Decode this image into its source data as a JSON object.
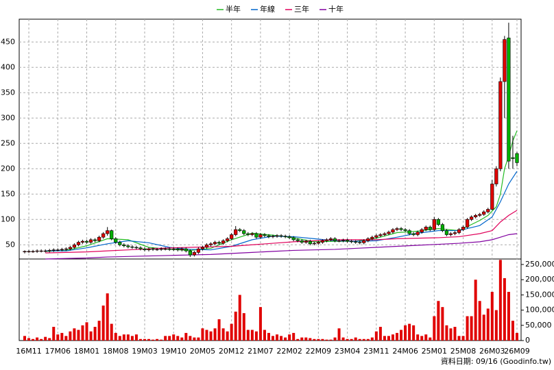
{
  "chart_data": {
    "type": "candlestick",
    "source": "資料日期: 09/16 (Goodinfo.tw)",
    "categories": [
      null,
      "16M11",
      null,
      null,
      null,
      null,
      null,
      null,
      "17M06",
      null,
      null,
      null,
      null,
      null,
      null,
      "18M01",
      null,
      null,
      null,
      null,
      null,
      null,
      "18M08",
      null,
      null,
      null,
      null,
      null,
      null,
      "19M03",
      null,
      null,
      null,
      null,
      null,
      null,
      "19M10",
      null,
      null,
      null,
      null,
      null,
      null,
      "20M05",
      null,
      null,
      null,
      null,
      null,
      null,
      "20M12",
      null,
      null,
      null,
      null,
      null,
      null,
      "21M07",
      null,
      null,
      null,
      null,
      null,
      null,
      "22M02",
      null,
      null,
      null,
      null,
      null,
      null,
      "22M09",
      null,
      null,
      null,
      null,
      null,
      null,
      "23M04",
      null,
      null,
      null,
      null,
      null,
      null,
      "23M11",
      null,
      null,
      null,
      null,
      null,
      null,
      "24M06",
      null,
      null,
      null,
      null,
      null,
      null,
      "25M01",
      null,
      null,
      null,
      null,
      null,
      null,
      "25M08",
      null,
      null,
      null,
      null,
      null,
      null,
      "26M03",
      null,
      null,
      null,
      null,
      null,
      "26M09"
    ],
    "open": [
      36,
      37,
      37,
      37,
      38,
      38,
      38,
      39,
      40,
      40,
      41,
      42,
      45,
      50,
      55,
      57,
      55,
      60,
      58,
      65,
      72,
      78,
      62,
      55,
      50,
      48,
      46,
      45,
      44,
      42,
      40,
      42,
      41,
      41,
      42,
      42,
      41,
      42,
      40,
      42,
      38,
      30,
      35,
      42,
      45,
      50,
      52,
      55,
      53,
      58,
      62,
      70,
      80,
      78,
      72,
      70,
      72,
      65,
      70,
      68,
      66,
      67,
      68,
      67,
      66,
      64,
      60,
      58,
      55,
      57,
      52,
      53,
      55,
      58,
      60,
      62,
      58,
      58,
      59,
      57,
      56,
      55,
      54,
      58,
      62,
      65,
      68,
      70,
      72,
      75,
      80,
      82,
      80,
      78,
      72,
      70,
      75,
      80,
      85,
      80,
      100,
      90,
      78,
      70,
      72,
      74,
      80,
      85,
      100,
      105,
      108,
      110,
      115,
      120,
      170,
      200,
      372,
      458,
      222,
      230
    ],
    "high": [
      39,
      40,
      40,
      41,
      41,
      41,
      42,
      43,
      43,
      44,
      45,
      48,
      53,
      58,
      60,
      60,
      63,
      63,
      68,
      75,
      85,
      80,
      65,
      58,
      53,
      51,
      49,
      48,
      47,
      45,
      45,
      45,
      44,
      45,
      45,
      45,
      45,
      45,
      45,
      45,
      41,
      38,
      45,
      48,
      53,
      55,
      58,
      58,
      61,
      65,
      73,
      87,
      83,
      81,
      75,
      75,
      75,
      73,
      73,
      71,
      70,
      71,
      71,
      70,
      69,
      67,
      63,
      61,
      60,
      60,
      56,
      58,
      61,
      63,
      65,
      65,
      61,
      62,
      62,
      60,
      59,
      58,
      61,
      65,
      68,
      71,
      73,
      75,
      78,
      83,
      85,
      85,
      83,
      81,
      75,
      78,
      83,
      88,
      88,
      105,
      103,
      93,
      81,
      75,
      77,
      83,
      88,
      103,
      108,
      111,
      113,
      118,
      123,
      178,
      205,
      380,
      462,
      488,
      265,
      233
    ],
    "low": [
      33,
      34,
      34,
      34,
      35,
      35,
      35,
      36,
      37,
      37,
      38,
      39,
      42,
      47,
      52,
      52,
      52,
      55,
      55,
      62,
      68,
      59,
      52,
      47,
      45,
      43,
      42,
      41,
      39,
      37,
      37,
      38,
      38,
      38,
      39,
      38,
      38,
      37,
      37,
      35,
      26,
      27,
      32,
      39,
      42,
      47,
      49,
      50,
      50,
      55,
      59,
      67,
      75,
      69,
      67,
      67,
      62,
      62,
      65,
      63,
      63,
      64,
      64,
      63,
      61,
      57,
      55,
      52,
      52,
      49,
      49,
      50,
      52,
      55,
      57,
      55,
      55,
      55,
      54,
      53,
      52,
      51,
      51,
      55,
      59,
      62,
      65,
      67,
      69,
      72,
      77,
      77,
      75,
      69,
      67,
      67,
      72,
      77,
      77,
      77,
      87,
      75,
      67,
      67,
      69,
      71,
      77,
      82,
      97,
      102,
      105,
      107,
      112,
      118,
      165,
      195,
      300,
      200,
      200,
      205
    ],
    "close": [
      37,
      37,
      37,
      38,
      38,
      38,
      39,
      40,
      40,
      41,
      42,
      45,
      50,
      55,
      57,
      55,
      60,
      58,
      65,
      72,
      78,
      62,
      55,
      50,
      48,
      46,
      45,
      44,
      42,
      40,
      42,
      41,
      41,
      42,
      42,
      41,
      42,
      40,
      42,
      38,
      30,
      35,
      42,
      45,
      50,
      52,
      55,
      53,
      58,
      62,
      70,
      80,
      78,
      72,
      70,
      72,
      65,
      70,
      68,
      66,
      67,
      68,
      67,
      66,
      64,
      60,
      58,
      55,
      57,
      52,
      53,
      55,
      58,
      60,
      62,
      58,
      58,
      59,
      57,
      56,
      55,
      54,
      58,
      62,
      65,
      68,
      70,
      72,
      75,
      80,
      82,
      80,
      78,
      72,
      70,
      75,
      80,
      85,
      80,
      100,
      90,
      78,
      70,
      72,
      74,
      80,
      85,
      100,
      105,
      108,
      110,
      115,
      120,
      170,
      200,
      372,
      455,
      215,
      220,
      212
    ],
    "up_color": "#e00000",
    "down_color": "#00b000",
    "ylim": [
      22,
      495
    ],
    "yticks": [
      50,
      100,
      150,
      200,
      250,
      300,
      350,
      400,
      450
    ],
    "grid": true,
    "series": [
      {
        "name": "半年",
        "color": "#22bb22",
        "x": [
          5,
          10,
          15,
          20,
          25,
          30,
          35,
          40,
          45,
          50,
          55,
          60,
          65,
          70,
          75,
          80,
          85,
          90,
          95,
          100,
          105,
          110,
          112,
          114,
          115,
          116,
          117,
          118,
          119
        ],
        "values": [
          37,
          39,
          48,
          62,
          60,
          45,
          41,
          39,
          43,
          60,
          73,
          69,
          64,
          56,
          57,
          57,
          63,
          74,
          77,
          82,
          78,
          98,
          108,
          125,
          150,
          200,
          225,
          255,
          275
        ]
      },
      {
        "name": "年線",
        "color": "#0066cc",
        "x": [
          5,
          10,
          15,
          20,
          25,
          30,
          35,
          40,
          45,
          50,
          55,
          60,
          65,
          70,
          75,
          80,
          85,
          90,
          95,
          100,
          105,
          110,
          113,
          115,
          117,
          119
        ],
        "values": [
          38,
          38,
          44,
          52,
          58,
          54,
          45,
          41,
          40,
          47,
          60,
          67,
          66,
          62,
          58,
          57,
          58,
          65,
          73,
          78,
          78,
          88,
          105,
          135,
          170,
          195
        ]
      },
      {
        "name": "三年",
        "color": "#e0005a",
        "x": [
          5,
          10,
          15,
          20,
          25,
          30,
          35,
          40,
          45,
          50,
          55,
          60,
          65,
          70,
          75,
          80,
          85,
          90,
          95,
          100,
          105,
          110,
          113,
          115,
          117,
          119
        ],
        "values": [
          34,
          35,
          36,
          38,
          40,
          42,
          44,
          45,
          46,
          47,
          50,
          53,
          56,
          58,
          60,
          60,
          60,
          62,
          63,
          64,
          66,
          72,
          78,
          95,
          108,
          118
        ]
      },
      {
        "name": "十年",
        "color": "#8000a0",
        "x": [
          5,
          10,
          15,
          20,
          25,
          30,
          35,
          40,
          45,
          50,
          55,
          60,
          65,
          70,
          75,
          80,
          85,
          90,
          95,
          100,
          105,
          110,
          113,
          115,
          117,
          119
        ],
        "values": [
          22,
          23,
          24,
          26,
          27,
          28,
          29,
          30,
          31,
          33,
          35,
          37,
          39,
          40,
          41,
          43,
          45,
          47,
          49,
          51,
          53,
          56,
          60,
          65,
          70,
          72
        ]
      }
    ],
    "volume": {
      "color": "#e00000",
      "ylim": [
        0,
        268000
      ],
      "yticks": [
        0,
        {
          "value": 50000,
          "label": "50,000"
        },
        {
          "value": 100000,
          "label": "100,000"
        },
        {
          "value": 150000,
          "label": "150,000"
        },
        {
          "value": 200000,
          "label": "200,000"
        },
        {
          "value": 250000,
          "label": "250,000"
        }
      ],
      "values": [
        15000,
        8000,
        5000,
        10000,
        5000,
        12000,
        8000,
        45000,
        20000,
        25000,
        15000,
        30000,
        40000,
        35000,
        50000,
        60000,
        30000,
        45000,
        65000,
        115000,
        155000,
        55000,
        25000,
        15000,
        20000,
        20000,
        15000,
        20000,
        5000,
        5000,
        5000,
        3000,
        5000,
        3000,
        15000,
        15000,
        20000,
        15000,
        10000,
        25000,
        15000,
        10000,
        10000,
        40000,
        35000,
        30000,
        40000,
        70000,
        40000,
        30000,
        55000,
        95000,
        150000,
        90000,
        35000,
        35000,
        30000,
        110000,
        35000,
        25000,
        15000,
        20000,
        15000,
        10000,
        20000,
        25000,
        5000,
        10000,
        10000,
        8000,
        5000,
        5000,
        5000,
        3000,
        3000,
        10000,
        40000,
        10000,
        5000,
        5000,
        10000,
        5000,
        5000,
        5000,
        10000,
        30000,
        45000,
        15000,
        15000,
        20000,
        25000,
        35000,
        50000,
        55000,
        50000,
        20000,
        15000,
        20000,
        10000,
        80000,
        130000,
        110000,
        50000,
        40000,
        45000,
        15000,
        15000,
        80000,
        80000,
        200000,
        130000,
        85000,
        105000,
        160000,
        100000,
        265000,
        205000,
        160000,
        65000,
        25000
      ]
    }
  }
}
